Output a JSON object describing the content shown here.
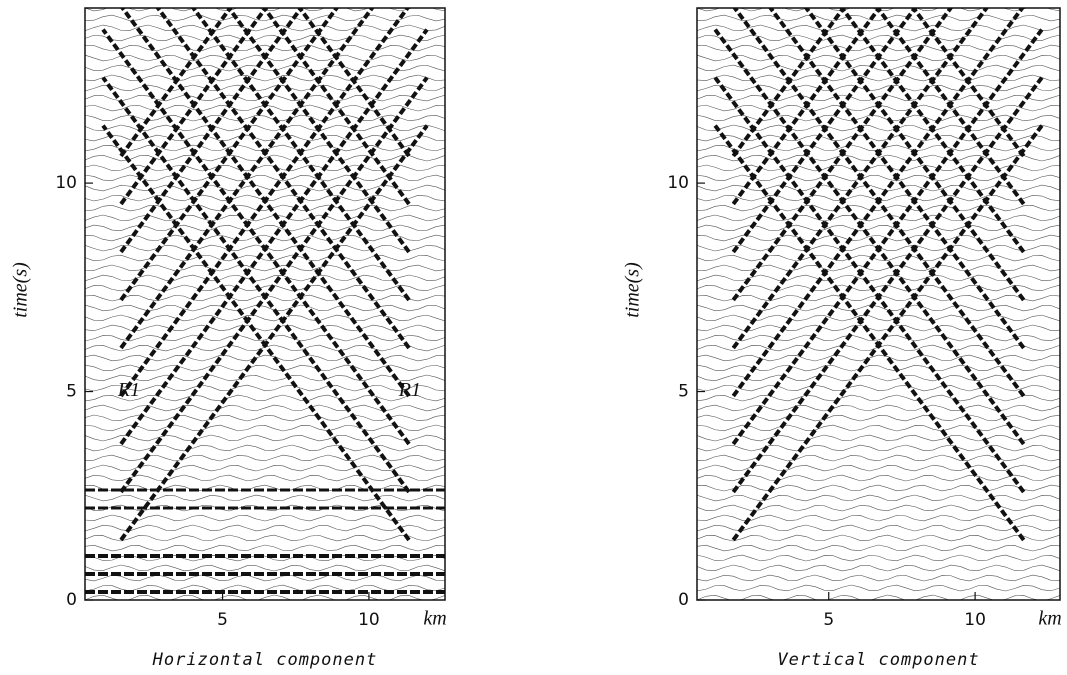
{
  "chart_data": [
    {
      "type": "contour",
      "title": "Horizontal component",
      "xlabel": "km",
      "ylabel": "time(s)",
      "xlim": [
        0.3,
        12.6
      ],
      "ylim": [
        0,
        14.2
      ],
      "xticks": [
        5,
        10
      ],
      "yticks": [
        0,
        5,
        10
      ],
      "annotations": [
        {
          "text": "R1",
          "x": 1.8,
          "y": 5.0
        },
        {
          "text": "R1",
          "x": 11.4,
          "y": 5.0
        }
      ]
    },
    {
      "type": "contour",
      "title": "Vertical component",
      "xlabel": "km",
      "ylabel": "time(s)",
      "xlim": [
        0.5,
        12.9
      ],
      "ylim": [
        0,
        14.2
      ],
      "xticks": [
        5,
        10
      ],
      "yticks": [
        0,
        5,
        10
      ],
      "annotations": []
    }
  ]
}
